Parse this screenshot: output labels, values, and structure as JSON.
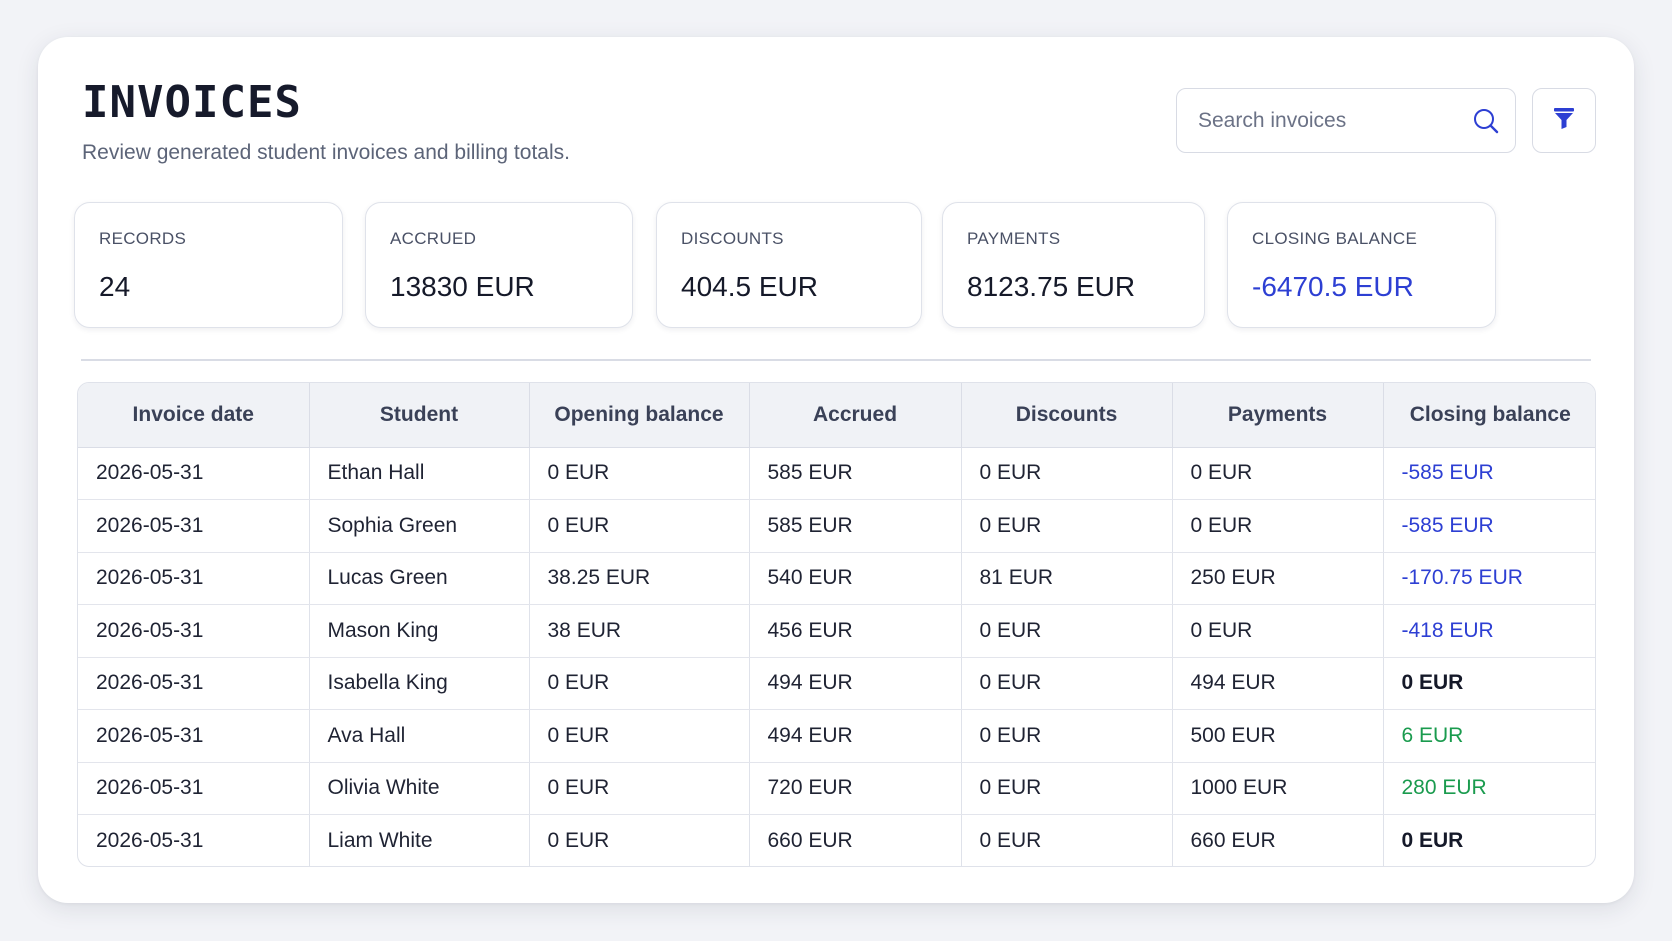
{
  "header": {
    "title": "INVOICES",
    "subtitle": "Review generated student invoices and billing totals."
  },
  "search": {
    "placeholder": "Search invoices",
    "value": ""
  },
  "icons": {
    "search": "search-icon",
    "filter": "filter-icon"
  },
  "colors": {
    "accent": "#2d3fd3",
    "positive": "#1a9b4e",
    "text": "#1f2333"
  },
  "stats": [
    {
      "label": "RECORDS",
      "value": "24"
    },
    {
      "label": "ACCRUED",
      "value": "13830 EUR"
    },
    {
      "label": "DISCOUNTS",
      "value": "404.5 EUR"
    },
    {
      "label": "PAYMENTS",
      "value": "8123.75 EUR"
    },
    {
      "label": "CLOSING BALANCE",
      "value": "-6470.5 EUR"
    }
  ],
  "table": {
    "columns": [
      "Invoice date",
      "Student",
      "Opening balance",
      "Accrued",
      "Discounts",
      "Payments",
      "Closing balance"
    ],
    "rows": [
      {
        "date": "2026-05-31",
        "student": "Ethan Hall",
        "opening": "0 EUR",
        "accrued": "585 EUR",
        "discounts": "0 EUR",
        "payments": "0 EUR",
        "closing": "-585 EUR",
        "status": "neg"
      },
      {
        "date": "2026-05-31",
        "student": "Sophia Green",
        "opening": "0 EUR",
        "accrued": "585 EUR",
        "discounts": "0 EUR",
        "payments": "0 EUR",
        "closing": "-585 EUR",
        "status": "neg"
      },
      {
        "date": "2026-05-31",
        "student": "Lucas Green",
        "opening": "38.25 EUR",
        "accrued": "540 EUR",
        "discounts": "81 EUR",
        "payments": "250 EUR",
        "closing": "-170.75 EUR",
        "status": "neg"
      },
      {
        "date": "2026-05-31",
        "student": "Mason King",
        "opening": "38 EUR",
        "accrued": "456 EUR",
        "discounts": "0 EUR",
        "payments": "0 EUR",
        "closing": "-418 EUR",
        "status": "neg"
      },
      {
        "date": "2026-05-31",
        "student": "Isabella King",
        "opening": "0 EUR",
        "accrued": "494 EUR",
        "discounts": "0 EUR",
        "payments": "494 EUR",
        "closing": "0 EUR",
        "status": "zero"
      },
      {
        "date": "2026-05-31",
        "student": "Ava Hall",
        "opening": "0 EUR",
        "accrued": "494 EUR",
        "discounts": "0 EUR",
        "payments": "500 EUR",
        "closing": "6 EUR",
        "status": "pos"
      },
      {
        "date": "2026-05-31",
        "student": "Olivia White",
        "opening": "0 EUR",
        "accrued": "720 EUR",
        "discounts": "0 EUR",
        "payments": "1000 EUR",
        "closing": "280 EUR",
        "status": "pos"
      },
      {
        "date": "2026-05-31",
        "student": "Liam White",
        "opening": "0 EUR",
        "accrued": "660 EUR",
        "discounts": "0 EUR",
        "payments": "660 EUR",
        "closing": "0 EUR",
        "status": "zero"
      }
    ]
  }
}
